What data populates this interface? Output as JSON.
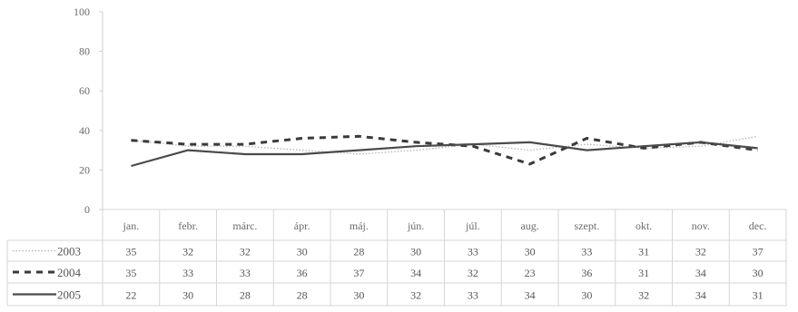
{
  "chart_data": {
    "type": "line",
    "title": "",
    "xlabel": "",
    "ylabel": "",
    "ylim": [
      0,
      100
    ],
    "yticks": [
      0,
      20,
      40,
      60,
      80,
      100
    ],
    "grid": false,
    "legend": "data-table-left",
    "categories": [
      "jan.",
      "febr.",
      "márc.",
      "ápr.",
      "máj.",
      "jún.",
      "júl.",
      "aug.",
      "szept.",
      "okt.",
      "nov.",
      "dec."
    ],
    "series": [
      {
        "name": "2003",
        "style": "dotted",
        "color": "#b0b0b0",
        "values": [
          35,
          32,
          32,
          30,
          28,
          30,
          33,
          30,
          33,
          31,
          32,
          37
        ]
      },
      {
        "name": "2004",
        "style": "dashed",
        "color": "#3a3a3a",
        "values": [
          35,
          33,
          33,
          36,
          37,
          34,
          32,
          23,
          36,
          31,
          34,
          30
        ]
      },
      {
        "name": "2005",
        "style": "solid",
        "color": "#4a4a4a",
        "values": [
          22,
          30,
          28,
          28,
          30,
          32,
          33,
          34,
          30,
          32,
          34,
          31
        ]
      }
    ]
  }
}
